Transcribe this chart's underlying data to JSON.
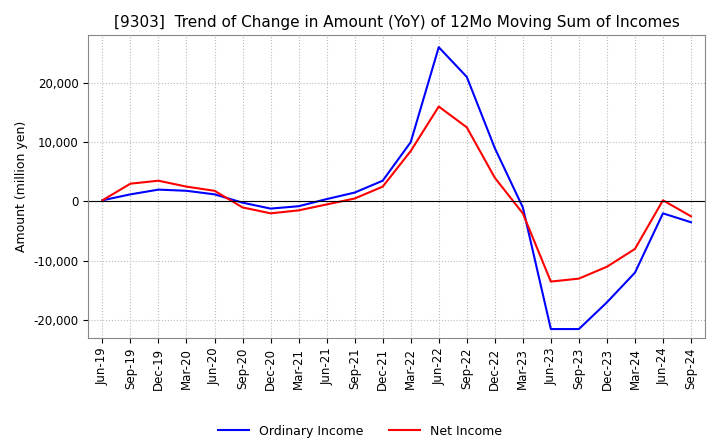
{
  "title": "[9303]  Trend of Change in Amount (YoY) of 12Mo Moving Sum of Incomes",
  "ylabel": "Amount (million yen)",
  "ylim": [
    -23000,
    28000
  ],
  "yticks": [
    -20000,
    -10000,
    0,
    10000,
    20000
  ],
  "legend_labels": [
    "Ordinary Income",
    "Net Income"
  ],
  "line_colors": [
    "blue",
    "red"
  ],
  "x_labels": [
    "Jun-19",
    "Sep-19",
    "Dec-19",
    "Mar-20",
    "Jun-20",
    "Sep-20",
    "Dec-20",
    "Mar-21",
    "Jun-21",
    "Sep-21",
    "Dec-21",
    "Mar-22",
    "Jun-22",
    "Sep-22",
    "Dec-22",
    "Mar-23",
    "Jun-23",
    "Sep-23",
    "Dec-23",
    "Mar-24",
    "Jun-24",
    "Sep-24"
  ],
  "ordinary_income": [
    200,
    1200,
    2000,
    1800,
    1200,
    -200,
    -1200,
    -800,
    400,
    1500,
    3500,
    10000,
    26000,
    21000,
    9000,
    -1000,
    -21500,
    -21500,
    -17000,
    -12000,
    -2000,
    -3500
  ],
  "net_income": [
    200,
    3000,
    3500,
    2500,
    1800,
    -1000,
    -2000,
    -1500,
    -500,
    500,
    2500,
    8500,
    16000,
    12500,
    4000,
    -2000,
    -13500,
    -13000,
    -11000,
    -8000,
    200,
    -2500
  ],
  "background_color": "#ffffff",
  "grid_color": "#bbbbbb",
  "title_fontsize": 11,
  "ylabel_fontsize": 9,
  "tick_fontsize": 8.5
}
